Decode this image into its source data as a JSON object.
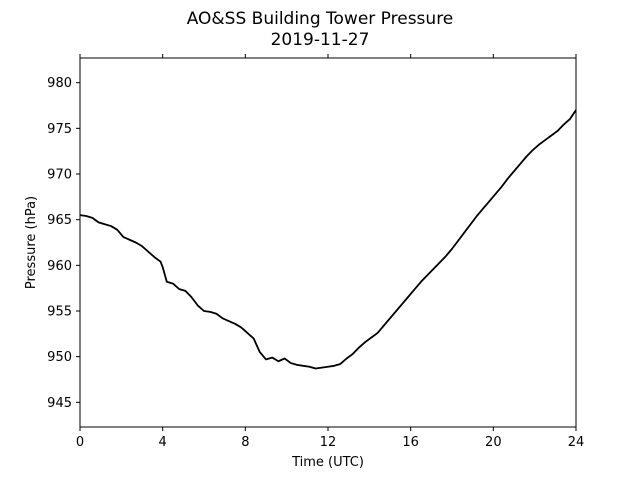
{
  "chart_data": {
    "type": "line",
    "title": "AO&SS Building Tower Pressure",
    "subtitle": "2019-11-27",
    "xlabel": "Time (UTC)",
    "ylabel": "Pressure (hPa)",
    "xlim": [
      0,
      24
    ],
    "ylim": [
      942.3,
      982.7
    ],
    "xticks": [
      0,
      4,
      8,
      12,
      16,
      20,
      24
    ],
    "yticks": [
      945,
      950,
      955,
      960,
      965,
      970,
      975,
      980
    ],
    "grid": false,
    "series": [
      {
        "color": "#000000",
        "x": [
          0,
          0.3,
          0.6,
          0.9,
          1.2,
          1.5,
          1.8,
          2.1,
          2.4,
          2.7,
          3.0,
          3.3,
          3.6,
          3.9,
          4.0,
          4.2,
          4.5,
          4.8,
          5.1,
          5.4,
          5.7,
          6.0,
          6.3,
          6.6,
          6.9,
          7.2,
          7.5,
          7.8,
          8.1,
          8.4,
          8.7,
          9.0,
          9.3,
          9.6,
          9.9,
          10.2,
          10.5,
          10.8,
          11.1,
          11.4,
          11.7,
          12.0,
          12.3,
          12.6,
          12.9,
          13.2,
          13.5,
          13.8,
          14.1,
          14.4,
          14.7,
          15.0,
          15.3,
          15.6,
          15.9,
          16.2,
          16.5,
          16.8,
          17.1,
          17.4,
          17.7,
          18.0,
          18.3,
          18.6,
          18.9,
          19.2,
          19.5,
          19.8,
          20.1,
          20.4,
          20.7,
          21.0,
          21.3,
          21.6,
          21.9,
          22.2,
          22.5,
          22.8,
          23.1,
          23.4,
          23.7,
          24.0
        ],
        "y": [
          965.5,
          965.4,
          965.2,
          964.7,
          964.5,
          964.3,
          963.9,
          963.1,
          962.8,
          962.5,
          962.1,
          961.5,
          960.9,
          960.4,
          959.8,
          958.2,
          958.0,
          957.4,
          957.2,
          956.5,
          955.6,
          955.0,
          954.9,
          954.7,
          954.2,
          953.9,
          953.6,
          953.2,
          952.6,
          952.0,
          950.5,
          949.7,
          949.9,
          949.5,
          949.8,
          949.3,
          949.1,
          949.0,
          948.9,
          948.7,
          948.8,
          948.9,
          949.0,
          949.2,
          949.8,
          950.3,
          951.0,
          951.6,
          952.1,
          952.6,
          953.4,
          954.2,
          955.0,
          955.8,
          956.6,
          957.4,
          958.2,
          958.9,
          959.6,
          960.3,
          961.0,
          961.8,
          962.7,
          963.6,
          964.5,
          965.4,
          966.2,
          967.0,
          967.8,
          968.6,
          969.5,
          970.3,
          971.1,
          971.9,
          972.6,
          973.2,
          973.7,
          974.2,
          974.7,
          975.4,
          976.0,
          977.0
        ]
      }
    ]
  }
}
